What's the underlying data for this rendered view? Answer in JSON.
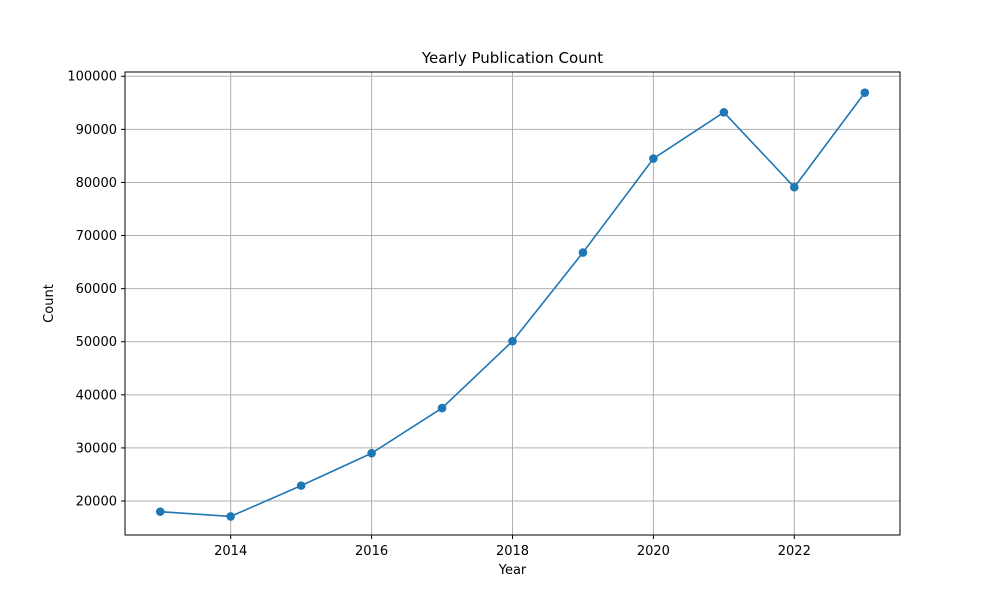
{
  "chart_data": {
    "type": "line",
    "title": "Yearly Publication Count",
    "xlabel": "Year",
    "ylabel": "Count",
    "x": [
      2013,
      2014,
      2015,
      2016,
      2017,
      2018,
      2019,
      2020,
      2021,
      2022,
      2023
    ],
    "series": [
      {
        "values": [
          18000,
          17100,
          22900,
          29000,
          37500,
          50100,
          66800,
          84500,
          93200,
          79100,
          96900
        ],
        "color": "#1f77b4",
        "marker": "circle"
      }
    ],
    "xticks": [
      2014,
      2016,
      2018,
      2020,
      2022
    ],
    "yticks": [
      20000,
      30000,
      40000,
      50000,
      60000,
      70000,
      80000,
      90000,
      100000
    ],
    "xlim": [
      2012.5,
      2023.5
    ],
    "ylim": [
      13600,
      100800
    ],
    "grid": true,
    "colors": {
      "line": "#1f77b4",
      "grid": "#b0b0b0",
      "axes": "#000000"
    }
  }
}
